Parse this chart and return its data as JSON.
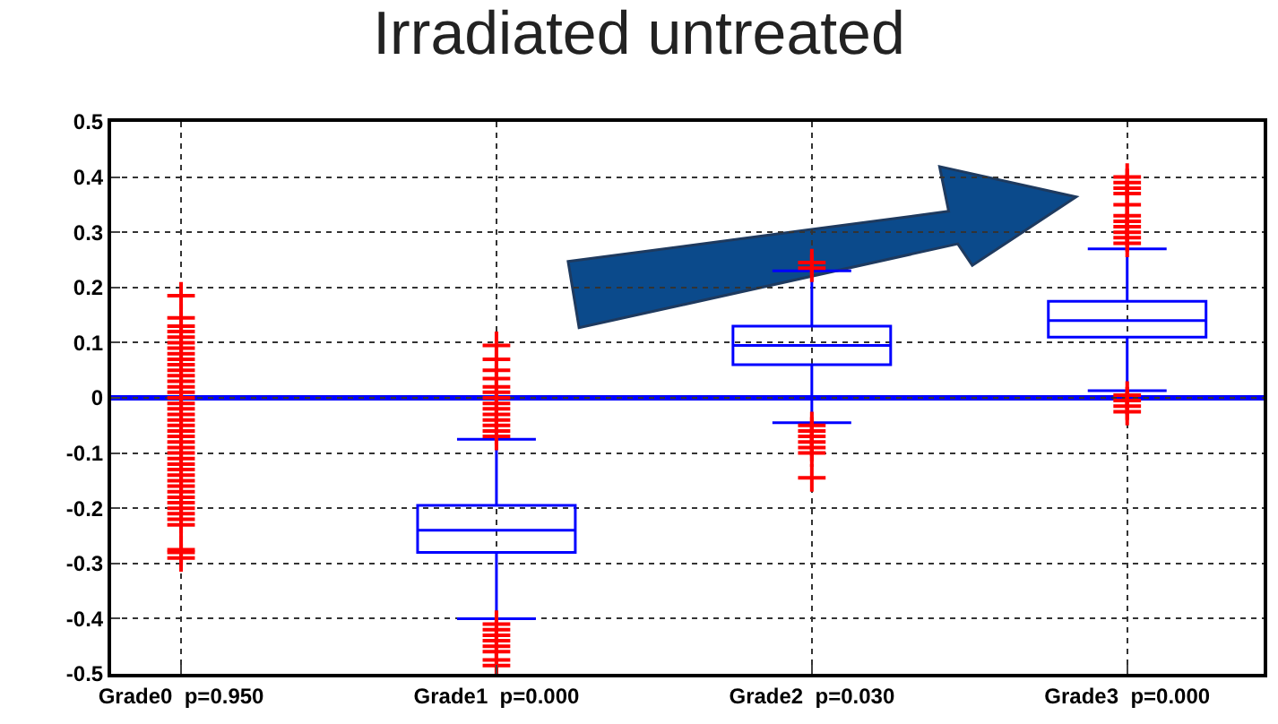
{
  "chart_data": {
    "type": "box",
    "title": "Irradiated untreated",
    "categories": [
      "Grade0  p=0.950",
      "Grade1  p=0.000",
      "Grade2  p=0.030",
      "Grade3  p=0.000"
    ],
    "series": [
      {
        "color": "#0000ff",
        "boxes": [
          null,
          {
            "low": -0.4,
            "q1": -0.28,
            "median": -0.24,
            "q3": -0.195,
            "high": -0.075
          },
          {
            "low": -0.045,
            "q1": 0.06,
            "median": 0.095,
            "q3": 0.13,
            "high": 0.23
          },
          {
            "low": 0.013,
            "q1": 0.11,
            "median": 0.14,
            "q3": 0.175,
            "high": 0.27
          }
        ]
      },
      {
        "type": "scatter",
        "color": "#ff0000",
        "marker": "cross",
        "x": [
          "Grade0  p=0.950",
          "Grade0  p=0.950",
          "Grade0  p=0.950",
          "Grade0  p=0.950",
          "Grade0  p=0.950",
          "Grade0  p=0.950",
          "Grade0  p=0.950",
          "Grade0  p=0.950",
          "Grade0  p=0.950",
          "Grade0  p=0.950",
          "Grade0  p=0.950",
          "Grade0  p=0.950",
          "Grade0  p=0.950",
          "Grade0  p=0.950",
          "Grade0  p=0.950",
          "Grade0  p=0.950",
          "Grade0  p=0.950",
          "Grade0  p=0.950",
          "Grade0  p=0.950",
          "Grade0  p=0.950",
          "Grade0  p=0.950",
          "Grade0  p=0.950",
          "Grade0  p=0.950",
          "Grade0  p=0.950",
          "Grade0  p=0.950",
          "Grade0  p=0.950",
          "Grade0  p=0.950",
          "Grade0  p=0.950",
          "Grade0  p=0.950",
          "Grade0  p=0.950",
          "Grade0  p=0.950",
          "Grade0  p=0.950",
          "Grade0  p=0.950",
          "Grade0  p=0.950",
          "Grade0  p=0.950",
          "Grade0  p=0.950",
          "Grade0  p=0.950",
          "Grade0  p=0.950",
          "Grade0  p=0.950",
          "Grade0  p=0.950",
          "Grade0  p=0.950",
          "Grade0  p=0.950",
          "Grade1  p=0.000",
          "Grade1  p=0.000",
          "Grade1  p=0.000",
          "Grade1  p=0.000",
          "Grade1  p=0.000",
          "Grade1  p=0.000",
          "Grade1  p=0.000",
          "Grade1  p=0.000",
          "Grade1  p=0.000",
          "Grade1  p=0.000",
          "Grade1  p=0.000",
          "Grade1  p=0.000",
          "Grade1  p=0.000",
          "Grade1  p=0.000",
          "Grade1  p=0.000",
          "Grade1  p=0.000",
          "Grade1  p=0.000",
          "Grade1  p=0.000",
          "Grade1  p=0.000",
          "Grade1  p=0.000",
          "Grade1  p=0.000",
          "Grade1  p=0.000",
          "Grade2  p=0.030",
          "Grade2  p=0.030",
          "Grade2  p=0.030",
          "Grade2  p=0.030",
          "Grade2  p=0.030",
          "Grade2  p=0.030",
          "Grade2  p=0.030",
          "Grade2  p=0.030",
          "Grade2  p=0.030",
          "Grade3  p=0.000",
          "Grade3  p=0.000",
          "Grade3  p=0.000",
          "Grade3  p=0.000",
          "Grade3  p=0.000",
          "Grade3  p=0.000",
          "Grade3  p=0.000",
          "Grade3  p=0.000",
          "Grade3  p=0.000",
          "Grade3  p=0.000",
          "Grade3  p=0.000",
          "Grade3  p=0.000",
          "Grade3  p=0.000",
          "Grade3  p=0.000",
          "Grade3  p=0.000"
        ],
        "values": [
          -0.29,
          -0.28,
          -0.275,
          -0.23,
          -0.22,
          -0.21,
          -0.2,
          -0.19,
          -0.18,
          -0.17,
          -0.16,
          -0.15,
          -0.14,
          -0.13,
          -0.12,
          -0.11,
          -0.1,
          -0.09,
          -0.08,
          -0.07,
          -0.06,
          -0.05,
          -0.04,
          -0.03,
          -0.02,
          -0.01,
          0,
          0.01,
          0.02,
          0.03,
          0.04,
          0.05,
          0.06,
          0.07,
          0.08,
          0.09,
          0.1,
          0.11,
          0.12,
          0.13,
          0.145,
          0.185,
          -0.07,
          -0.06,
          -0.05,
          -0.04,
          -0.03,
          -0.02,
          -0.01,
          0,
          0.01,
          0.02,
          0.035,
          0.05,
          0.07,
          0.095,
          -0.41,
          -0.42,
          -0.43,
          -0.44,
          -0.45,
          -0.46,
          -0.475,
          -0.485,
          0.235,
          0.245,
          -0.05,
          -0.06,
          -0.07,
          -0.08,
          -0.09,
          -0.1,
          -0.145,
          0.28,
          0.29,
          0.3,
          0.31,
          0.32,
          0.33,
          0.35,
          0.37,
          0.38,
          0.39,
          0.4,
          0.005,
          -0.005,
          -0.015,
          -0.025
        ]
      }
    ],
    "ylim": [
      -0.5,
      0.5
    ],
    "yticks": [
      -0.5,
      -0.4,
      -0.3,
      -0.2,
      -0.1,
      {
        "value": 0,
        "label": "0"
      },
      0.1,
      0.2,
      0.3,
      0.4,
      0.5
    ],
    "grid": true,
    "ref_lines": [
      {
        "axis": "y",
        "value": 0,
        "color": "#0000ff",
        "line_style": "solid"
      }
    ]
  }
}
